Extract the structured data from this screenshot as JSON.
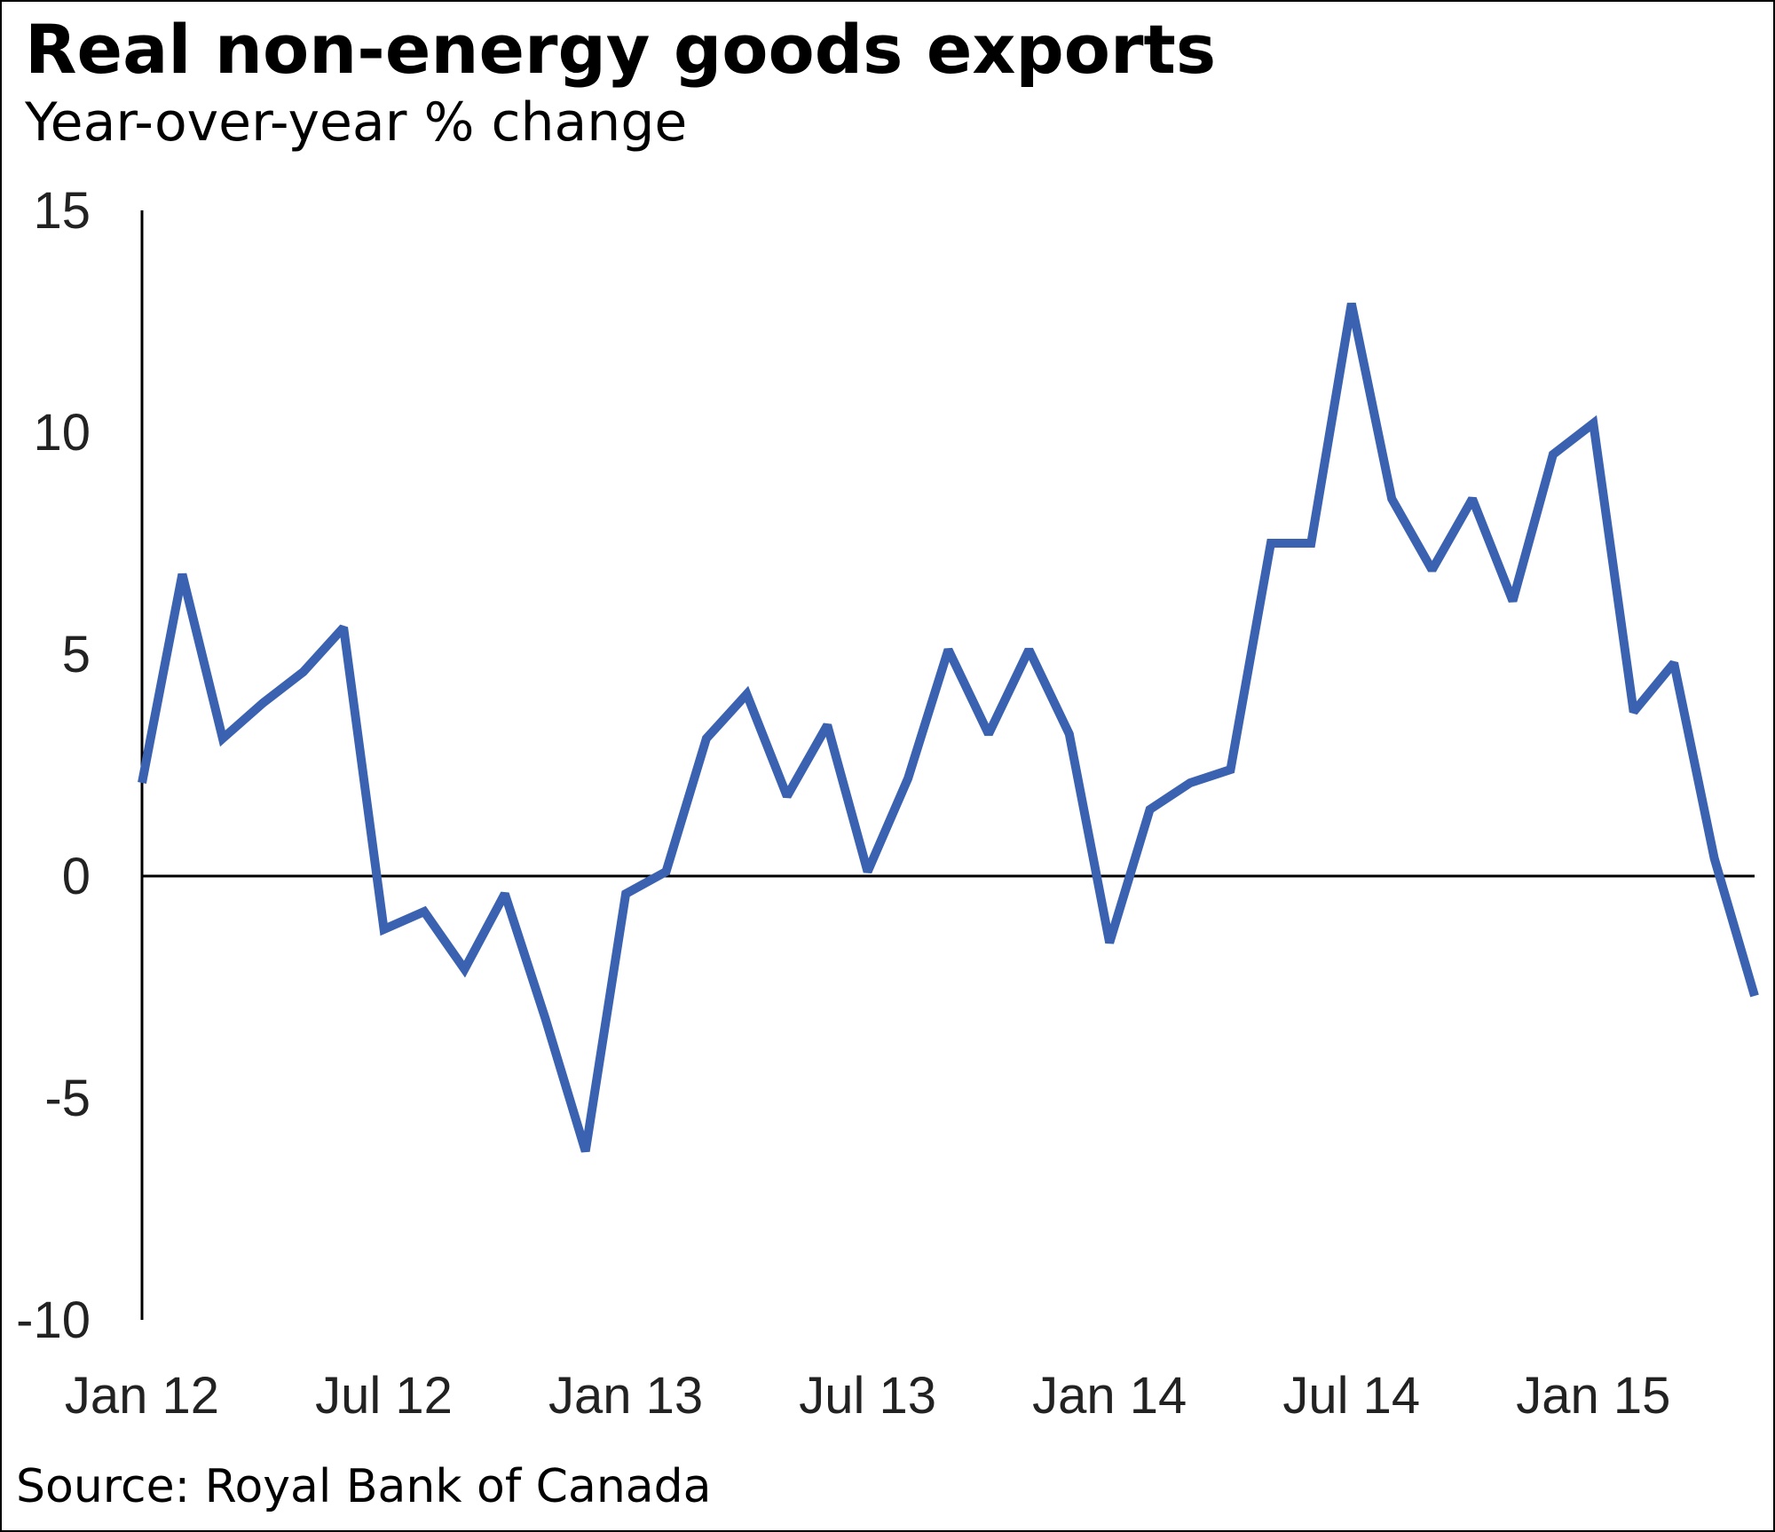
{
  "header": {
    "title": "Real non-energy goods exports",
    "subtitle": "Year-over-year % change"
  },
  "footer": {
    "source": "Source: Royal Bank of Canada"
  },
  "chart_data": {
    "type": "line",
    "title": "Real non-energy goods exports",
    "subtitle": "Year-over-year % change",
    "xlabel": "",
    "ylabel": "",
    "ylim": [
      -10,
      15
    ],
    "yticks": [
      15,
      10,
      5,
      0,
      -5,
      -10
    ],
    "xtick_labels": [
      "Jan 12",
      "Jul 12",
      "Jan 13",
      "Jul 13",
      "Jan 14",
      "Jul 14",
      "Jan 15"
    ],
    "xtick_dates": [
      "2012-01",
      "2012-07",
      "2013-01",
      "2013-07",
      "2014-01",
      "2014-07",
      "2015-01"
    ],
    "grid": false,
    "legend": "none",
    "line_color": "#3a62b0",
    "series": [
      {
        "x": [
          "2012-01",
          "2012-02",
          "2012-03",
          "2012-04",
          "2012-05",
          "2012-06",
          "2012-07",
          "2012-08",
          "2012-09",
          "2012-10",
          "2012-11",
          "2012-12",
          "2013-01",
          "2013-02",
          "2013-03",
          "2013-04",
          "2013-05",
          "2013-06",
          "2013-07",
          "2013-08",
          "2013-09",
          "2013-10",
          "2013-11",
          "2013-12",
          "2014-01",
          "2014-02",
          "2014-03",
          "2014-04",
          "2014-05",
          "2014-06",
          "2014-07",
          "2014-08",
          "2014-09",
          "2014-10",
          "2014-11",
          "2014-12",
          "2015-01",
          "2015-02",
          "2015-03",
          "2015-04",
          "2015-05"
        ],
        "values": [
          2.1,
          6.8,
          3.1,
          3.9,
          4.6,
          5.6,
          -1.2,
          -0.8,
          -2.1,
          -0.4,
          -3.2,
          -6.2,
          -0.4,
          0.1,
          3.1,
          4.1,
          1.8,
          3.4,
          0.1,
          2.2,
          5.1,
          3.2,
          5.1,
          3.2,
          -1.5,
          1.5,
          2.1,
          2.4,
          7.5,
          7.5,
          12.9,
          8.5,
          6.9,
          8.5,
          6.2,
          9.5,
          10.2,
          3.7,
          4.8,
          0.4,
          -2.7
        ]
      }
    ]
  }
}
